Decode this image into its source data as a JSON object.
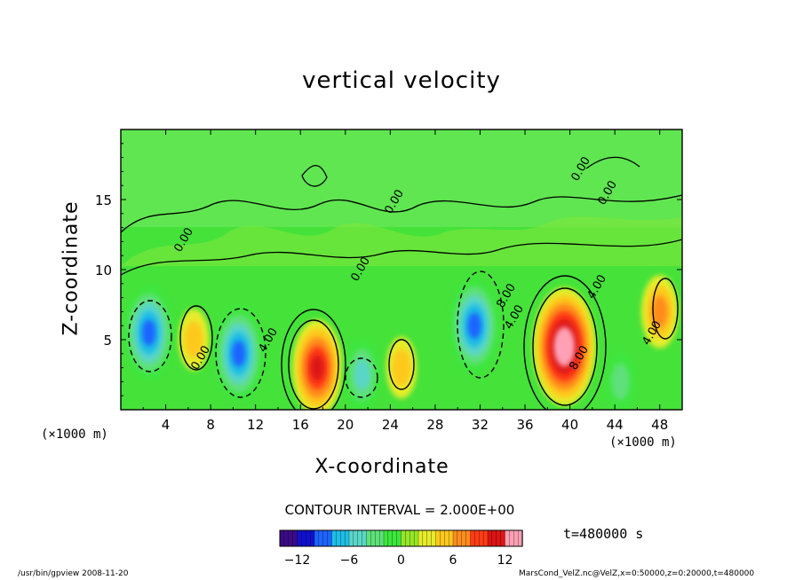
{
  "chart_data": {
    "type": "heatmap",
    "title": "vertical velocity",
    "xlabel": "X-coordinate",
    "ylabel": "Z-coordinate",
    "x_unit_label": "(×1000 m)",
    "xlim": [
      0,
      50
    ],
    "ylim": [
      0,
      20
    ],
    "x_ticks": [
      "4",
      "8",
      "12",
      "16",
      "20",
      "24",
      "28",
      "32",
      "36",
      "40",
      "44",
      "48"
    ],
    "y_ticks": [
      "5",
      "10",
      "15"
    ],
    "colorbar": {
      "range": [
        -14,
        14
      ],
      "ticks": [
        "−12",
        "−6",
        "0",
        "6",
        "12"
      ],
      "colors": [
        "#3c0b86",
        "#1010cc",
        "#1e64ff",
        "#1ebee6",
        "#5ad6c8",
        "#5fe07a",
        "#3ce63c",
        "#96e628",
        "#e6ec2a",
        "#ffc81e",
        "#ff8c1e",
        "#ff3c14",
        "#dc1414",
        "#ffa0b4"
      ]
    },
    "features": [
      {
        "x": 2.5,
        "z": 5.5,
        "value": -10
      },
      {
        "x": 10.5,
        "z": 4.0,
        "value": -10
      },
      {
        "x": 6.5,
        "z": 5.0,
        "value": 4
      },
      {
        "x": 17.5,
        "z": 3.0,
        "value": 10
      },
      {
        "x": 21.5,
        "z": 2.5,
        "value": -6
      },
      {
        "x": 25.0,
        "z": 3.0,
        "value": 4
      },
      {
        "x": 31.5,
        "z": 6.0,
        "value": -10
      },
      {
        "x": 39.5,
        "z": 4.5,
        "value": 14
      },
      {
        "x": 48.0,
        "z": 7.0,
        "value": 6
      },
      {
        "x": 44.5,
        "z": 2.0,
        "value": -4
      }
    ],
    "contour_labels": [
      "0.00",
      "0.00",
      "0.00",
      "0.00",
      "0.00",
      "4.00",
      "4.00",
      "4.00",
      "8.00",
      "8.00",
      "4.00",
      "0.00"
    ]
  },
  "contour_interval": "CONTOUR INTERVAL = 2.000E+00",
  "time_label": "t=480000  s",
  "footer": {
    "left": "/usr/bin/gpview  2008-11-20",
    "right": "MarsCond_VelZ.nc@VelZ,x=0:50000,z=0:20000,t=480000"
  }
}
